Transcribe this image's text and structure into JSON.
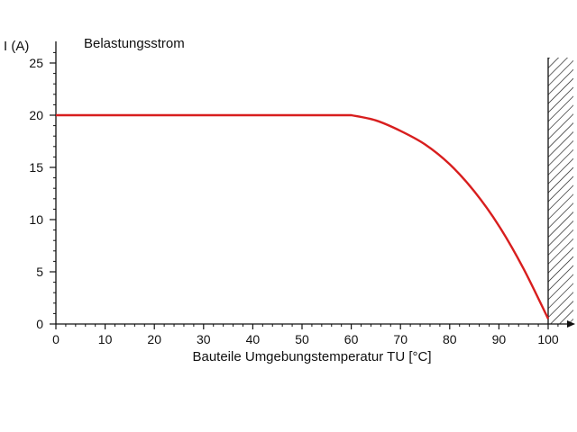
{
  "chart_data": {
    "type": "line",
    "title": "Belastungsstrom",
    "xlabel": "Bauteile Umgebungstemperatur TU [°C]",
    "ylabel": "I (A)",
    "xlim": [
      0,
      105
    ],
    "ylim": [
      0,
      27
    ],
    "x_ticks": [
      0,
      10,
      20,
      30,
      40,
      50,
      60,
      70,
      80,
      90,
      100
    ],
    "y_ticks": [
      0,
      5,
      10,
      15,
      20,
      25
    ],
    "grid": false,
    "line_color": "#d81e1e",
    "hatched_region": {
      "x_from": 100,
      "x_to": 105
    },
    "series": [
      {
        "x": [
          0,
          60,
          65,
          70,
          75,
          80,
          85,
          90,
          95,
          100
        ],
        "y": [
          20,
          20,
          19.5,
          18.5,
          17.2,
          15.3,
          12.7,
          9.4,
          5.3,
          0.5
        ]
      }
    ]
  }
}
